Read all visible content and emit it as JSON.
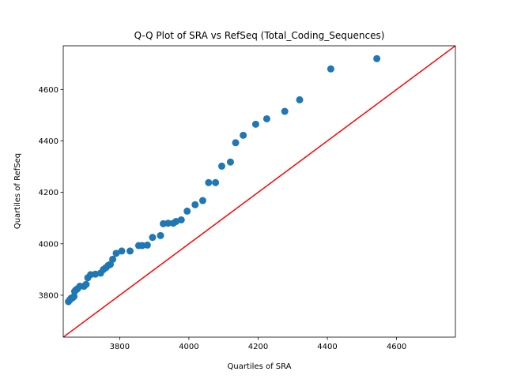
{
  "chart_data": {
    "type": "scatter",
    "title": "Q-Q Plot of SRA vs RefSeq (Total_Coding_Sequences)",
    "xlabel": "Quartiles of SRA",
    "ylabel": "Quartiles of RefSeq",
    "xlim": [
      3637,
      4770
    ],
    "ylim": [
      3637,
      4770
    ],
    "xticks": [
      3800,
      4000,
      4200,
      4400,
      4600
    ],
    "yticks": [
      3800,
      4000,
      4200,
      4400,
      4600
    ],
    "grid": false,
    "point_color": "#1f77b4",
    "reference_line": {
      "from": [
        3637,
        3637
      ],
      "to": [
        4770,
        4770
      ],
      "color": "#ff0000"
    },
    "series": [
      {
        "x": [
          3652,
          3656,
          3660,
          3664,
          3668,
          3670,
          3673,
          3678,
          3685,
          3697,
          3703,
          3708,
          3716,
          3730,
          3745,
          3753,
          3760,
          3767,
          3773,
          3780,
          3790,
          3806,
          3830,
          3855,
          3865,
          3880,
          3895,
          3918,
          3926,
          3940,
          3955,
          3963,
          3978,
          3995,
          4018,
          4040,
          4057,
          4077,
          4095,
          4120,
          4135,
          4157,
          4193,
          4225,
          4277,
          4320,
          4410,
          4543
        ],
        "y": [
          3775,
          3782,
          3789,
          3790,
          3795,
          3815,
          3820,
          3825,
          3835,
          3835,
          3842,
          3868,
          3880,
          3882,
          3886,
          3900,
          3907,
          3916,
          3920,
          3940,
          3963,
          3972,
          3972,
          3993,
          3993,
          3995,
          4025,
          4032,
          4078,
          4080,
          4080,
          4087,
          4093,
          4127,
          4152,
          4168,
          4238,
          4238,
          4302,
          4318,
          4393,
          4422,
          4465,
          4486,
          4515,
          4560,
          4680,
          4720
        ]
      }
    ]
  }
}
